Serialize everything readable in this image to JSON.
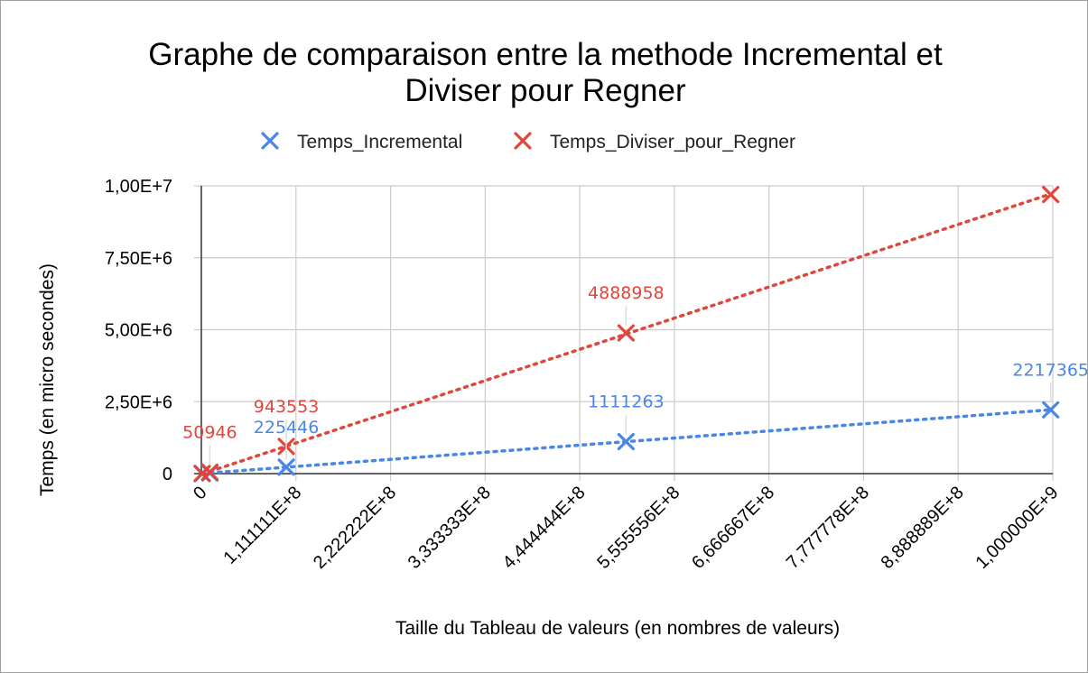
{
  "chart_data": {
    "type": "scatter",
    "title_lines": [
      "Graphe de comparaison entre la methode Incremental et",
      "Diviser pour Regner"
    ],
    "xlabel": "Taille du Tableau de valeurs (en nombres de valeurs)",
    "ylabel": "Temps (en micro secondes)",
    "xlim": [
      0,
      1000000000
    ],
    "ylim": [
      0,
      10000000
    ],
    "x_ticks": [
      "0",
      "1,111111E+8",
      "2,222222E+8",
      "3,333333E+8",
      "4,444444E+8",
      "5,555556E+8",
      "6,666667E+8",
      "7,777778E+8",
      "8,888889E+8",
      "1,000000E+9"
    ],
    "y_ticks": [
      "0",
      "2,50E+6",
      "5,00E+6",
      "7,50E+6",
      "1,00E+7"
    ],
    "legend_position": "top",
    "grid": true,
    "trendline": "linear dotted",
    "series": [
      {
        "name": "Temps_Incremental",
        "color": "#4a86e8",
        "marker": "star-x",
        "points": [
          {
            "x": 1000000,
            "y": 2000,
            "label": ""
          },
          {
            "x": 10000000,
            "y": 22544,
            "label": ""
          },
          {
            "x": 100000000,
            "y": 225446,
            "label": "225446"
          },
          {
            "x": 500000000,
            "y": 1111263,
            "label": "1111263"
          },
          {
            "x": 1000000000,
            "y": 2217365,
            "label": "2217365"
          }
        ]
      },
      {
        "name": "Temps_Diviser_pour_Regner",
        "color": "#e0473c",
        "marker": "star-x",
        "points": [
          {
            "x": 1000000,
            "y": 5000,
            "label": ""
          },
          {
            "x": 10000000,
            "y": 50946,
            "label": "50946"
          },
          {
            "x": 100000000,
            "y": 943553,
            "label": "943553"
          },
          {
            "x": 500000000,
            "y": 4888958,
            "label": "4888958"
          },
          {
            "x": 1000000000,
            "y": 9700000,
            "label": ""
          }
        ]
      }
    ]
  }
}
